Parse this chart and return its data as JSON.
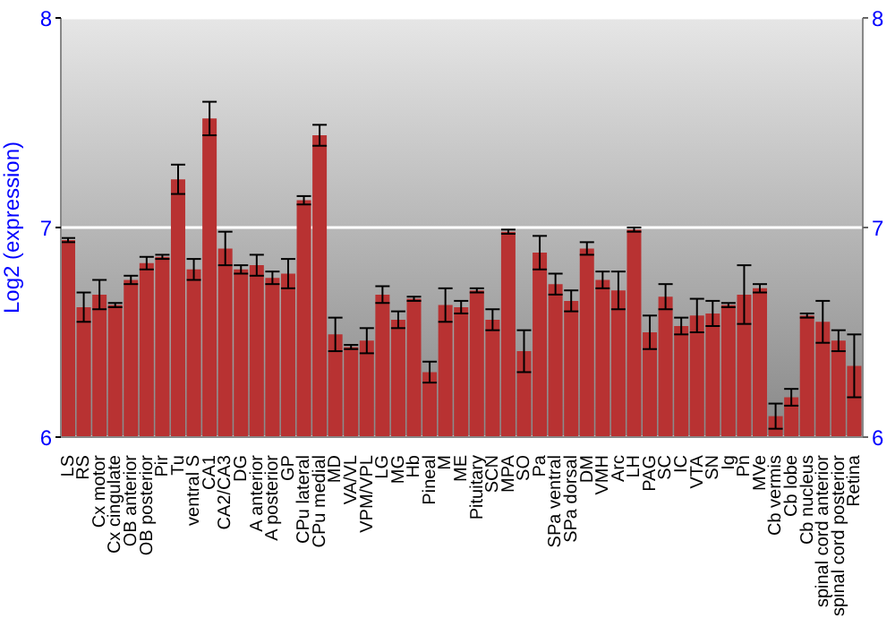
{
  "chart_data": {
    "type": "bar",
    "ylabel": "Log2 (expression)",
    "categories": [
      "LS",
      "RS",
      "Cx motor",
      "Cx cingulate",
      "OB anterior",
      "OB posterior",
      "Pir",
      "Tu",
      "ventral S",
      "CA1",
      "CA2/CA3",
      "DG",
      "A anterior",
      "A posterior",
      "GP",
      "CPu lateral",
      "CPu medial",
      "MD",
      "VA/VL",
      "VPM/VPL",
      "LG",
      "MG",
      "Hb",
      "Pineal",
      "M",
      "ME",
      "Pituitary",
      "SCN",
      "MPA",
      "SO",
      "Pa",
      "SPa ventral",
      "SPa dorsal",
      "DM",
      "VMH",
      "Arc",
      "LH",
      "PAG",
      "SC",
      "IC",
      "VTA",
      "SN",
      "Ig",
      "Pn",
      "MVe",
      "Cb vermis",
      "Cb lobe",
      "Cb nucleus",
      "spinal cord anterior",
      "spinal cord posterior",
      "Retina"
    ],
    "values": [
      6.94,
      6.62,
      6.68,
      6.63,
      6.75,
      6.83,
      6.86,
      7.23,
      6.8,
      7.52,
      6.9,
      6.8,
      6.82,
      6.76,
      6.78,
      7.13,
      7.44,
      6.49,
      6.43,
      6.46,
      6.68,
      6.56,
      6.66,
      6.31,
      6.63,
      6.62,
      6.7,
      6.56,
      6.98,
      6.41,
      6.88,
      6.73,
      6.65,
      6.9,
      6.75,
      6.7,
      6.99,
      6.5,
      6.67,
      6.53,
      6.58,
      6.59,
      6.63,
      6.68,
      6.71,
      6.1,
      6.19,
      6.58,
      6.55,
      6.46,
      6.34
    ],
    "errors": [
      0.01,
      0.07,
      0.07,
      0.01,
      0.02,
      0.03,
      0.01,
      0.07,
      0.05,
      0.08,
      0.08,
      0.02,
      0.05,
      0.03,
      0.07,
      0.02,
      0.05,
      0.08,
      0.01,
      0.06,
      0.04,
      0.04,
      0.01,
      0.05,
      0.08,
      0.03,
      0.01,
      0.05,
      0.01,
      0.1,
      0.08,
      0.05,
      0.05,
      0.03,
      0.04,
      0.09,
      0.01,
      0.08,
      0.06,
      0.04,
      0.08,
      0.06,
      0.01,
      0.14,
      0.02,
      0.06,
      0.04,
      0.01,
      0.1,
      0.05,
      0.15
    ],
    "color": "#b83232",
    "ylim": [
      6,
      8
    ],
    "yticks": [
      6,
      7,
      8
    ],
    "y2lim": [
      6,
      8
    ],
    "y2ticks": [
      6,
      7,
      8
    ],
    "grid": "y"
  }
}
